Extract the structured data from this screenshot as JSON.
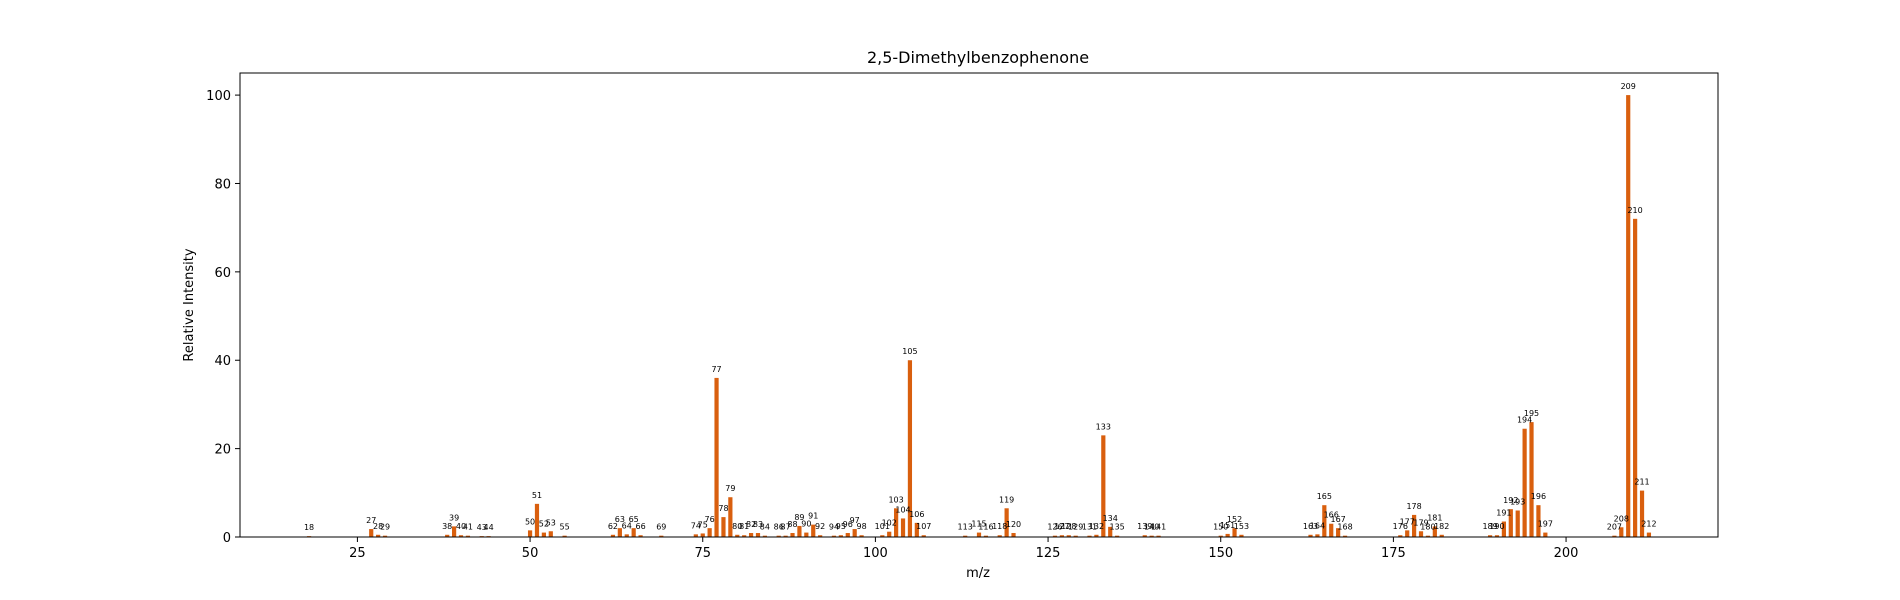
{
  "chart_data": {
    "type": "bar",
    "title": "2,5-Dimethylbenzophenone",
    "xlabel": "m/z",
    "ylabel": "Relative Intensity",
    "xlim": [
      8,
      222
    ],
    "ylim": [
      0,
      105
    ],
    "xticks": [
      25,
      50,
      75,
      100,
      125,
      150,
      175,
      200
    ],
    "yticks": [
      0,
      20,
      40,
      60,
      80,
      100
    ],
    "bar_color": "#d95f0e",
    "grid": false,
    "legend": "none",
    "peaks": [
      {
        "mz": 18,
        "intensity": 0.2
      },
      {
        "mz": 27,
        "intensity": 1.8
      },
      {
        "mz": 28,
        "intensity": 0.5
      },
      {
        "mz": 29,
        "intensity": 0.3
      },
      {
        "mz": 38,
        "intensity": 0.5
      },
      {
        "mz": 39,
        "intensity": 2.4
      },
      {
        "mz": 40,
        "intensity": 0.4
      },
      {
        "mz": 41,
        "intensity": 0.3
      },
      {
        "mz": 43,
        "intensity": 0.2
      },
      {
        "mz": 44,
        "intensity": 0.2
      },
      {
        "mz": 50,
        "intensity": 1.5
      },
      {
        "mz": 51,
        "intensity": 7.5
      },
      {
        "mz": 52,
        "intensity": 1.0
      },
      {
        "mz": 53,
        "intensity": 1.3
      },
      {
        "mz": 55,
        "intensity": 0.3
      },
      {
        "mz": 62,
        "intensity": 0.5
      },
      {
        "mz": 63,
        "intensity": 2.0
      },
      {
        "mz": 64,
        "intensity": 0.6
      },
      {
        "mz": 65,
        "intensity": 2.0
      },
      {
        "mz": 66,
        "intensity": 0.4
      },
      {
        "mz": 69,
        "intensity": 0.3
      },
      {
        "mz": 74,
        "intensity": 0.6
      },
      {
        "mz": 75,
        "intensity": 0.8
      },
      {
        "mz": 76,
        "intensity": 2.0
      },
      {
        "mz": 77,
        "intensity": 36.0
      },
      {
        "mz": 78,
        "intensity": 4.5
      },
      {
        "mz": 79,
        "intensity": 9.0
      },
      {
        "mz": 80,
        "intensity": 0.5
      },
      {
        "mz": 81,
        "intensity": 0.4
      },
      {
        "mz": 82,
        "intensity": 0.9
      },
      {
        "mz": 83,
        "intensity": 0.9
      },
      {
        "mz": 84,
        "intensity": 0.3
      },
      {
        "mz": 86,
        "intensity": 0.3
      },
      {
        "mz": 87,
        "intensity": 0.3
      },
      {
        "mz": 88,
        "intensity": 0.9
      },
      {
        "mz": 89,
        "intensity": 2.5
      },
      {
        "mz": 90,
        "intensity": 1.0
      },
      {
        "mz": 91,
        "intensity": 2.8
      },
      {
        "mz": 92,
        "intensity": 0.4
      },
      {
        "mz": 94,
        "intensity": 0.3
      },
      {
        "mz": 95,
        "intensity": 0.4
      },
      {
        "mz": 96,
        "intensity": 0.9
      },
      {
        "mz": 97,
        "intensity": 1.8
      },
      {
        "mz": 98,
        "intensity": 0.4
      },
      {
        "mz": 101,
        "intensity": 0.4
      },
      {
        "mz": 102,
        "intensity": 1.2
      },
      {
        "mz": 103,
        "intensity": 6.5
      },
      {
        "mz": 104,
        "intensity": 4.2
      },
      {
        "mz": 105,
        "intensity": 40.0
      },
      {
        "mz": 106,
        "intensity": 3.2
      },
      {
        "mz": 107,
        "intensity": 0.4
      },
      {
        "mz": 113,
        "intensity": 0.3
      },
      {
        "mz": 115,
        "intensity": 1.0
      },
      {
        "mz": 116,
        "intensity": 0.3
      },
      {
        "mz": 118,
        "intensity": 0.4
      },
      {
        "mz": 119,
        "intensity": 6.5
      },
      {
        "mz": 120,
        "intensity": 0.9
      },
      {
        "mz": 126,
        "intensity": 0.3
      },
      {
        "mz": 127,
        "intensity": 0.4
      },
      {
        "mz": 128,
        "intensity": 0.4
      },
      {
        "mz": 129,
        "intensity": 0.3
      },
      {
        "mz": 131,
        "intensity": 0.3
      },
      {
        "mz": 132,
        "intensity": 0.5
      },
      {
        "mz": 133,
        "intensity": 23.0
      },
      {
        "mz": 134,
        "intensity": 2.3
      },
      {
        "mz": 135,
        "intensity": 0.3
      },
      {
        "mz": 139,
        "intensity": 0.4
      },
      {
        "mz": 140,
        "intensity": 0.3
      },
      {
        "mz": 141,
        "intensity": 0.3
      },
      {
        "mz": 150,
        "intensity": 0.3
      },
      {
        "mz": 151,
        "intensity": 0.7
      },
      {
        "mz": 152,
        "intensity": 2.0
      },
      {
        "mz": 153,
        "intensity": 0.5
      },
      {
        "mz": 163,
        "intensity": 0.5
      },
      {
        "mz": 164,
        "intensity": 0.6
      },
      {
        "mz": 165,
        "intensity": 7.2
      },
      {
        "mz": 166,
        "intensity": 3.0
      },
      {
        "mz": 167,
        "intensity": 2.0
      },
      {
        "mz": 168,
        "intensity": 0.3
      },
      {
        "mz": 176,
        "intensity": 0.4
      },
      {
        "mz": 177,
        "intensity": 1.5
      },
      {
        "mz": 178,
        "intensity": 5.0
      },
      {
        "mz": 179,
        "intensity": 1.3
      },
      {
        "mz": 180,
        "intensity": 0.3
      },
      {
        "mz": 181,
        "intensity": 2.4
      },
      {
        "mz": 182,
        "intensity": 0.5
      },
      {
        "mz": 189,
        "intensity": 0.4
      },
      {
        "mz": 190,
        "intensity": 0.4
      },
      {
        "mz": 191,
        "intensity": 3.5
      },
      {
        "mz": 192,
        "intensity": 6.3
      },
      {
        "mz": 193,
        "intensity": 6.0
      },
      {
        "mz": 194,
        "intensity": 24.5
      },
      {
        "mz": 195,
        "intensity": 26.0
      },
      {
        "mz": 196,
        "intensity": 7.2
      },
      {
        "mz": 197,
        "intensity": 1.0
      },
      {
        "mz": 207,
        "intensity": 0.3
      },
      {
        "mz": 208,
        "intensity": 2.2
      },
      {
        "mz": 209,
        "intensity": 100.0
      },
      {
        "mz": 210,
        "intensity": 72.0
      },
      {
        "mz": 211,
        "intensity": 10.5
      },
      {
        "mz": 212,
        "intensity": 1.0
      }
    ]
  }
}
